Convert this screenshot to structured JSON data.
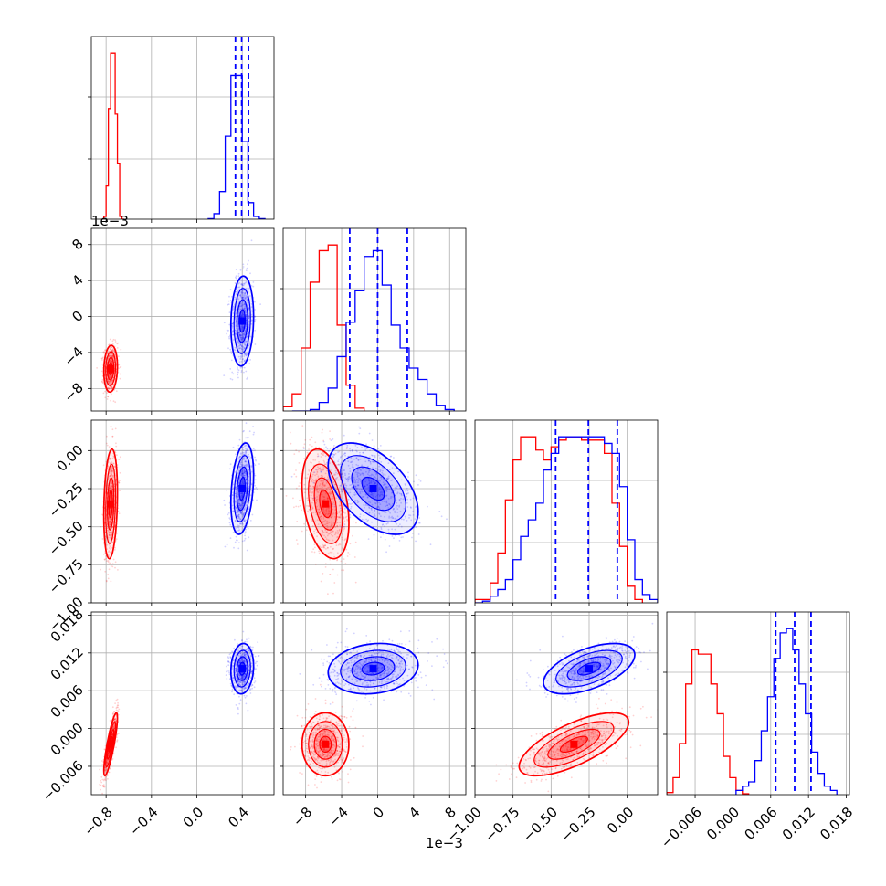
{
  "chart_data": {
    "type": "corner",
    "title": "",
    "n_params": 4,
    "grid": true,
    "offset_labels": {
      "y_row1": "1e−3",
      "x_col1": "1e−3"
    },
    "axes_ranges": [
      [
        -0.93,
        0.68
      ],
      [
        -0.0105,
        0.0098
      ],
      [
        -1.0,
        0.2
      ],
      [
        -0.0105,
        0.0185
      ]
    ],
    "ticks": [
      {
        "values": [
          -0.8,
          -0.4,
          0.0,
          0.4
        ],
        "labels": [
          "−0.8",
          "−0.4",
          "0.0",
          "0.4"
        ]
      },
      {
        "values": [
          -0.008,
          -0.004,
          0.0,
          0.004,
          0.008
        ],
        "labels": [
          "−8",
          "−4",
          "0",
          "4",
          "8"
        ]
      },
      {
        "values": [
          -1.0,
          -0.75,
          -0.5,
          -0.25,
          0.0
        ],
        "labels": [
          "−1.00",
          "−0.75",
          "−0.50",
          "−0.25",
          "0.00"
        ]
      },
      {
        "values": [
          -0.006,
          0.0,
          0.006,
          0.012,
          0.018
        ],
        "labels": [
          "−0.006",
          "0.000",
          "0.006",
          "0.012",
          "0.018"
        ]
      }
    ],
    "series": [
      {
        "color": "#ff0000",
        "means": [
          -0.76,
          -0.0058,
          -0.35,
          -0.0025
        ],
        "stds": [
          0.03,
          0.0013,
          0.18,
          0.0025
        ],
        "pair_correlations": {
          "1-0": 0.1,
          "2-0": 0.2,
          "2-1": -0.35,
          "3-0": 0.85,
          "3-1": 0.0,
          "3-2": 0.7
        },
        "histograms": [
          {
            "bin_edges": [
              -0.84,
              -0.82,
              -0.8,
              -0.78,
              -0.76,
              -0.74,
              -0.72,
              -0.7,
              -0.68,
              -0.66,
              -0.64
            ],
            "counts": [
              0,
              0.05,
              0.6,
              2.0,
              3.0,
              3.0,
              1.9,
              1.0,
              0.05,
              0,
              0
            ]
          },
          {
            "bin_edges": [
              -0.0105,
              -0.0095,
              -0.0085,
              -0.0075,
              -0.0065,
              -0.0055,
              -0.0045,
              -0.0035,
              -0.0025,
              -0.0015
            ],
            "counts": [
              0.15,
              0.6,
              2.2,
              4.5,
              5.6,
              5.8,
              3.0,
              0.9,
              0.1
            ]
          },
          {
            "bin_edges": [
              -1.0,
              -0.9,
              -0.85,
              -0.8,
              -0.75,
              -0.7,
              -0.65,
              -0.6,
              -0.55,
              -0.5,
              -0.45,
              -0.4,
              -0.35,
              -0.3,
              -0.25,
              -0.2,
              -0.15,
              -0.1,
              -0.05,
              0.0,
              0.05,
              0.1
            ],
            "counts": [
              0.02,
              0.12,
              0.3,
              0.62,
              0.86,
              1.0,
              1.0,
              0.92,
              0.86,
              0.94,
              0.98,
              1.0,
              1.0,
              0.98,
              0.98,
              0.98,
              0.9,
              0.6,
              0.34,
              0.1,
              0.02
            ]
          },
          {
            "bin_edges": [
              -0.0105,
              -0.0095,
              -0.0085,
              -0.0075,
              -0.0065,
              -0.0055,
              -0.0045,
              -0.0035,
              -0.0025,
              -0.0015,
              -0.0005,
              0.0005,
              0.0015,
              0.0025
            ],
            "counts": [
              0.05,
              0.4,
              1.2,
              2.6,
              3.4,
              3.3,
              3.3,
              2.6,
              1.9,
              0.9,
              0.4,
              0.1,
              0.02
            ]
          }
        ]
      },
      {
        "color": "#0000ff",
        "means": [
          0.4,
          -0.0005,
          -0.25,
          0.0095
        ],
        "stds": [
          0.05,
          0.0025,
          0.15,
          0.002
        ],
        "pair_correlations": {
          "1-0": 0.1,
          "2-0": 0.3,
          "2-1": -0.5,
          "3-0": 0.1,
          "3-1": 0.15,
          "3-2": 0.55
        },
        "quantile_lines": [
          [
            0.34,
            0.395,
            0.455
          ],
          [
            -0.0031,
            0.0,
            0.0033
          ],
          [
            -0.47,
            -0.255,
            -0.065
          ],
          [
            0.0068,
            0.0098,
            0.0124
          ]
        ],
        "histograms": [
          {
            "bin_edges": [
              0.1,
              0.15,
              0.2,
              0.25,
              0.3,
              0.35,
              0.4,
              0.45,
              0.5,
              0.55,
              0.6
            ],
            "counts": [
              0.01,
              0.1,
              0.5,
              1.5,
              2.6,
              2.6,
              1.4,
              0.3,
              0.05,
              0.01
            ]
          },
          {
            "bin_edges": [
              -0.0095,
              -0.0085,
              -0.0075,
              -0.0065,
              -0.0055,
              -0.0045,
              -0.0035,
              -0.0025,
              -0.0015,
              -0.0005,
              0.0005,
              0.0015,
              0.0025,
              0.0035,
              0.0045,
              0.0055,
              0.0065,
              0.0075,
              0.0085
            ],
            "counts": [
              0,
              0,
              0.05,
              0.3,
              0.8,
              1.9,
              3.1,
              4.2,
              5.4,
              5.6,
              4.4,
              3.0,
              2.2,
              1.5,
              1.1,
              0.6,
              0.2,
              0.05
            ]
          },
          {
            "bin_edges": [
              -1.0,
              -0.95,
              -0.9,
              -0.85,
              -0.8,
              -0.75,
              -0.7,
              -0.65,
              -0.6,
              -0.55,
              -0.5,
              -0.45,
              -0.4,
              -0.35,
              -0.3,
              -0.25,
              -0.2,
              -0.15,
              -0.1,
              -0.05,
              0.0,
              0.05,
              0.1,
              0.15,
              0.2
            ],
            "counts": [
              0,
              0.01,
              0.04,
              0.08,
              0.14,
              0.26,
              0.4,
              0.5,
              0.6,
              0.8,
              0.9,
              1.0,
              1.0,
              1.0,
              1.0,
              1.0,
              1.0,
              0.96,
              0.9,
              0.7,
              0.38,
              0.14,
              0.05,
              0.02
            ]
          },
          {
            "bin_edges": [
              0.0005,
              0.0015,
              0.0025,
              0.0035,
              0.0045,
              0.0055,
              0.0065,
              0.0075,
              0.0085,
              0.0095,
              0.0105,
              0.0115,
              0.0125,
              0.0135,
              0.0145,
              0.0155,
              0.0165
            ],
            "counts": [
              0.1,
              0.2,
              0.3,
              0.8,
              1.5,
              2.3,
              3.2,
              3.8,
              3.9,
              3.4,
              2.6,
              1.9,
              1.0,
              0.5,
              0.2,
              0.1
            ]
          }
        ]
      }
    ]
  }
}
